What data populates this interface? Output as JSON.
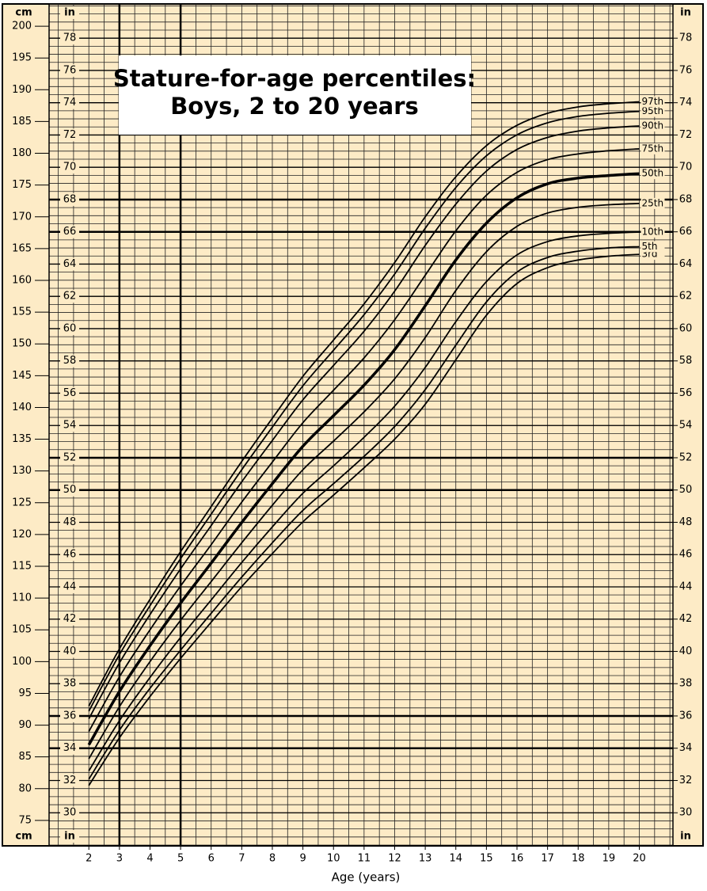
{
  "chart_data": {
    "type": "line",
    "title_lines": [
      "Stature-for-age percentiles:",
      "Boys, 2 to 20 years"
    ],
    "x_label": "Age (years)",
    "y_label": "cm",
    "y2_label": "in",
    "x": [
      2,
      3,
      4,
      5,
      6,
      7,
      8,
      9,
      10,
      11,
      12,
      13,
      14,
      15,
      16,
      17,
      18,
      19,
      20
    ],
    "xlim": [
      0.7,
      21.1
    ],
    "xticks": [
      2,
      3,
      4,
      5,
      6,
      7,
      8,
      9,
      10,
      11,
      12,
      13,
      14,
      15,
      16,
      17,
      18,
      19,
      20
    ],
    "ylim": [
      71,
      203.5
    ],
    "yticks": [
      75,
      80,
      85,
      90,
      95,
      100,
      105,
      110,
      115,
      120,
      125,
      130,
      135,
      140,
      145,
      150,
      155,
      160,
      165,
      170,
      175,
      180,
      185,
      190,
      195,
      200
    ],
    "y2lim": [
      27.95,
      80.12
    ],
    "y2ticks": [
      30,
      32,
      34,
      36,
      38,
      40,
      42,
      44,
      46,
      48,
      50,
      52,
      54,
      56,
      58,
      60,
      62,
      64,
      66,
      68,
      70,
      72,
      74,
      76,
      78
    ],
    "y2_emphasis": [
      34,
      36,
      50,
      52,
      66,
      68
    ],
    "x_emphasis": [
      3,
      5
    ],
    "grid": true,
    "background": "#fdebc6",
    "series": [
      {
        "name": "3rd",
        "color": "#000000",
        "values": [
          80.5,
          88.0,
          94.5,
          100.5,
          106.2,
          111.8,
          117.0,
          122.0,
          126.2,
          130.5,
          135.0,
          140.5,
          147.5,
          154.5,
          159.5,
          162.0,
          163.2,
          163.8,
          164.1
        ]
      },
      {
        "name": "5th",
        "color": "#000000",
        "values": [
          81.5,
          89.2,
          95.8,
          101.8,
          107.6,
          113.3,
          118.7,
          123.8,
          128.0,
          132.3,
          137.0,
          142.8,
          149.8,
          156.6,
          161.3,
          163.6,
          164.6,
          165.1,
          165.3
        ]
      },
      {
        "name": "10th",
        "color": "#000000",
        "values": [
          82.8,
          90.7,
          97.5,
          103.8,
          109.7,
          115.6,
          121.2,
          126.5,
          130.8,
          135.3,
          140.2,
          146.3,
          153.5,
          159.8,
          164.0,
          166.1,
          167.0,
          167.4,
          167.6
        ]
      },
      {
        "name": "25th",
        "color": "#000000",
        "values": [
          84.7,
          92.9,
          100.0,
          106.5,
          112.6,
          118.7,
          124.6,
          130.2,
          134.7,
          139.3,
          144.5,
          151.0,
          158.4,
          164.5,
          168.5,
          170.6,
          171.5,
          171.9,
          172.1
        ]
      },
      {
        "name": "50th",
        "color": "#000000",
        "values": [
          86.9,
          95.3,
          102.5,
          109.2,
          115.5,
          121.9,
          128.0,
          133.9,
          138.7,
          143.5,
          149.1,
          156.0,
          163.2,
          169.0,
          173.0,
          175.2,
          176.1,
          176.5,
          176.8
        ]
      },
      {
        "name": "75th",
        "color": "#000000",
        "values": [
          89.0,
          97.6,
          105.0,
          111.9,
          118.4,
          125.1,
          131.4,
          137.6,
          142.7,
          147.8,
          153.8,
          160.8,
          167.8,
          173.4,
          177.0,
          179.0,
          179.9,
          180.4,
          180.7
        ]
      },
      {
        "name": "90th",
        "color": "#000000",
        "values": [
          91.0,
          99.8,
          107.4,
          114.6,
          121.4,
          128.3,
          134.8,
          141.2,
          146.6,
          152.0,
          158.3,
          165.5,
          172.0,
          177.2,
          180.6,
          182.5,
          183.5,
          184.0,
          184.3
        ]
      },
      {
        "name": "95th",
        "color": "#000000",
        "values": [
          92.2,
          101.1,
          108.8,
          116.2,
          123.2,
          130.2,
          136.9,
          143.4,
          149.0,
          154.6,
          161.0,
          168.2,
          174.6,
          179.6,
          182.9,
          184.8,
          185.8,
          186.3,
          186.6
        ]
      },
      {
        "name": "97th",
        "color": "#000000",
        "values": [
          93.0,
          102.0,
          109.8,
          117.3,
          124.4,
          131.5,
          138.3,
          144.9,
          150.6,
          156.3,
          162.8,
          170.0,
          176.3,
          181.2,
          184.4,
          186.3,
          187.3,
          187.8,
          188.1
        ]
      }
    ]
  }
}
